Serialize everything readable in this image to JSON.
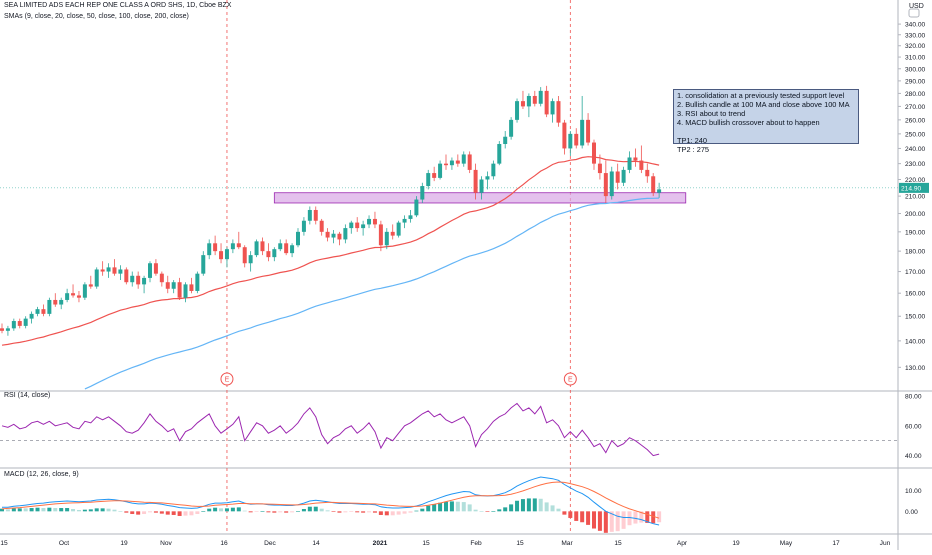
{
  "header": {
    "title": "SEA LIMITED ADS EACH REP ONE CLASS A ORD SHS, 1D, Cboe BZX",
    "smas": "SMAs (9, close, 20, close, 50, close, 100, close, 200, close)",
    "rsi": "RSI (14, close)",
    "macd": "MACD (12, 26, close, 9)",
    "currency": "USD"
  },
  "notes": {
    "lines": [
      "1. consolidation at a previously tested support level",
      "2. Bullish candle at 100 MA and close above 100 MA",
      "3. RSI about to trend",
      "4. MACD bullish crossover about to happen",
      "",
      "TP1:  240",
      "TP2 : 275"
    ]
  },
  "earnings_marker": "E",
  "colors": {
    "up": "#26a69a",
    "down": "#ef5350",
    "sma100": "#ef5350",
    "sma200": "#64b5f6",
    "rsi": "#9c27b0",
    "macd": "#2196f3",
    "signal": "#ff7043",
    "zone": "#d9a6e6"
  },
  "chart_data": [
    {
      "type": "candlestick",
      "y_axis": {
        "ticks": [
          130,
          140,
          150,
          160,
          170,
          180,
          190,
          200,
          210,
          220,
          230,
          240,
          250,
          260,
          270,
          280,
          290,
          300,
          310,
          320,
          330,
          340
        ],
        "ylim": [
          122,
          342
        ],
        "scale": "log",
        "current_price": "214.90"
      },
      "x_axis": {
        "ticks": [
          "15",
          "Oct",
          "19",
          "Nov",
          "16",
          "Dec",
          "14",
          "2021",
          "15",
          "Feb",
          "15",
          "Mar",
          "15",
          "Apr",
          "19",
          "May",
          "17",
          "Jun"
        ]
      },
      "support_zone": [
        206,
        212
      ],
      "candles": [
        [
          145,
          147,
          143,
          144
        ],
        [
          144,
          146,
          142,
          145
        ],
        [
          145,
          149,
          144,
          148
        ],
        [
          148,
          149,
          145,
          146
        ],
        [
          146,
          150,
          145,
          149
        ],
        [
          149,
          152,
          147,
          151
        ],
        [
          151,
          154,
          150,
          153
        ],
        [
          153,
          155,
          150,
          151
        ],
        [
          151,
          158,
          150,
          157
        ],
        [
          157,
          160,
          154,
          155
        ],
        [
          155,
          158,
          153,
          157
        ],
        [
          157,
          162,
          156,
          160
        ],
        [
          160,
          164,
          158,
          159
        ],
        [
          159,
          161,
          156,
          158
        ],
        [
          158,
          165,
          157,
          164
        ],
        [
          164,
          168,
          162,
          163
        ],
        [
          163,
          172,
          162,
          171
        ],
        [
          171,
          175,
          168,
          170
        ],
        [
          170,
          174,
          167,
          172
        ],
        [
          172,
          176,
          168,
          169
        ],
        [
          169,
          173,
          166,
          171
        ],
        [
          171,
          172,
          164,
          165
        ],
        [
          165,
          170,
          163,
          168
        ],
        [
          168,
          170,
          162,
          164
        ],
        [
          164,
          168,
          160,
          167
        ],
        [
          167,
          175,
          165,
          174
        ],
        [
          174,
          176,
          168,
          169
        ],
        [
          169,
          170,
          163,
          165
        ],
        [
          165,
          168,
          160,
          162
        ],
        [
          162,
          166,
          160,
          165
        ],
        [
          165,
          167,
          157,
          158
        ],
        [
          158,
          165,
          156,
          164
        ],
        [
          164,
          167,
          160,
          161
        ],
        [
          161,
          170,
          160,
          169
        ],
        [
          169,
          180,
          168,
          178
        ],
        [
          178,
          186,
          176,
          184
        ],
        [
          184,
          188,
          178,
          180
        ],
        [
          180,
          184,
          174,
          176
        ],
        [
          176,
          182,
          172,
          181
        ],
        [
          181,
          186,
          179,
          184
        ],
        [
          184,
          190,
          181,
          182
        ],
        [
          182,
          183,
          172,
          174
        ],
        [
          174,
          180,
          170,
          178
        ],
        [
          178,
          186,
          177,
          185
        ],
        [
          185,
          187,
          178,
          180
        ],
        [
          180,
          184,
          175,
          177
        ],
        [
          177,
          182,
          175,
          181
        ],
        [
          181,
          186,
          180,
          184
        ],
        [
          184,
          186,
          178,
          179
        ],
        [
          179,
          184,
          177,
          183
        ],
        [
          183,
          192,
          182,
          190
        ],
        [
          190,
          198,
          188,
          196
        ],
        [
          196,
          204,
          194,
          202
        ],
        [
          202,
          204,
          194,
          196
        ],
        [
          196,
          197,
          188,
          190
        ],
        [
          190,
          192,
          185,
          187
        ],
        [
          187,
          191,
          184,
          189
        ],
        [
          189,
          190,
          183,
          186
        ],
        [
          186,
          194,
          184,
          192
        ],
        [
          192,
          196,
          189,
          195
        ],
        [
          195,
          198,
          190,
          192
        ],
        [
          192,
          196,
          188,
          194
        ],
        [
          194,
          199,
          192,
          197
        ],
        [
          197,
          201,
          192,
          194
        ],
        [
          194,
          196,
          180,
          183
        ],
        [
          183,
          192,
          181,
          190
        ],
        [
          190,
          194,
          186,
          188
        ],
        [
          188,
          196,
          187,
          195
        ],
        [
          195,
          199,
          192,
          197
        ],
        [
          197,
          202,
          195,
          199
        ],
        [
          199,
          210,
          198,
          208
        ],
        [
          208,
          218,
          206,
          216
        ],
        [
          216,
          226,
          214,
          224
        ],
        [
          224,
          228,
          219,
          221
        ],
        [
          221,
          232,
          220,
          230
        ],
        [
          230,
          236,
          226,
          229
        ],
        [
          229,
          234,
          226,
          232
        ],
        [
          232,
          236,
          228,
          230
        ],
        [
          230,
          238,
          228,
          236
        ],
        [
          236,
          238,
          224,
          226
        ],
        [
          226,
          230,
          208,
          212
        ],
        [
          212,
          222,
          208,
          220
        ],
        [
          220,
          225,
          214,
          222
        ],
        [
          222,
          232,
          220,
          230
        ],
        [
          230,
          245,
          229,
          243
        ],
        [
          243,
          252,
          240,
          248
        ],
        [
          248,
          262,
          246,
          260
        ],
        [
          260,
          276,
          258,
          274
        ],
        [
          274,
          282,
          268,
          270
        ],
        [
          270,
          280,
          262,
          278
        ],
        [
          278,
          282,
          270,
          272
        ],
        [
          272,
          285,
          270,
          282
        ],
        [
          282,
          286,
          262,
          264
        ],
        [
          264,
          276,
          258,
          274
        ],
        [
          274,
          278,
          255,
          258
        ],
        [
          258,
          260,
          236,
          240
        ],
        [
          240,
          252,
          235,
          250
        ],
        [
          250,
          254,
          240,
          242
        ],
        [
          242,
          278,
          240,
          260
        ],
        [
          260,
          265,
          242,
          244
        ],
        [
          244,
          246,
          226,
          230
        ],
        [
          230,
          236,
          220,
          224
        ],
        [
          224,
          232,
          206,
          210
        ],
        [
          210,
          228,
          208,
          225
        ],
        [
          225,
          230,
          214,
          218
        ],
        [
          218,
          228,
          216,
          226
        ],
        [
          226,
          238,
          224,
          234
        ],
        [
          234,
          240,
          228,
          232
        ],
        [
          232,
          242,
          224,
          226
        ],
        [
          226,
          230,
          218,
          222
        ],
        [
          222,
          224,
          210,
          212
        ],
        [
          212,
          218,
          209,
          214
        ]
      ]
    },
    {
      "type": "line",
      "title": "RSI (14, close)",
      "y_axis": {
        "ticks": [
          40,
          60,
          80
        ],
        "ylim": [
          33,
          82
        ],
        "reference": 50
      },
      "values": [
        60,
        59,
        61,
        58,
        59,
        62,
        63,
        61,
        63,
        60,
        61,
        62,
        59,
        58,
        63,
        62,
        66,
        64,
        66,
        63,
        60,
        56,
        55,
        57,
        62,
        68,
        63,
        60,
        56,
        58,
        50,
        56,
        58,
        62,
        65,
        68,
        60,
        55,
        58,
        61,
        66,
        50,
        56,
        62,
        60,
        55,
        57,
        60,
        55,
        58,
        62,
        68,
        72,
        66,
        54,
        48,
        52,
        54,
        58,
        60,
        55,
        58,
        62,
        56,
        45,
        52,
        50,
        55,
        60,
        62,
        65,
        68,
        70,
        66,
        68,
        64,
        62,
        64,
        66,
        60,
        46,
        54,
        58,
        63,
        66,
        68,
        72,
        75,
        70,
        72,
        68,
        73,
        62,
        64,
        60,
        52,
        56,
        52,
        57,
        52,
        46,
        48,
        42,
        50,
        46,
        48,
        52,
        50,
        47,
        44,
        40,
        41
      ]
    },
    {
      "type": "line",
      "title": "MACD (12, 26, close, 9)",
      "y_axis": {
        "ticks": [
          0.0,
          10.0
        ],
        "ylim": [
          -10,
          20
        ]
      },
      "series": [
        {
          "name": "",
          "values": [
            2,
            2,
            2.5,
            2.7,
            3,
            3.4,
            3.8,
            4,
            4.4,
            4.6,
            4.8,
            5,
            4.8,
            4.6,
            4.8,
            5,
            5.5,
            5.7,
            5.8,
            5.6,
            5.2,
            4.6,
            4,
            3.6,
            3.6,
            4,
            3.8,
            3.4,
            2.8,
            2.4,
            1.8,
            1.6,
            1.4,
            1.6,
            2.4,
            3.4,
            4,
            4,
            4.2,
            4.6,
            5,
            4,
            3.4,
            3.6,
            3.6,
            3.2,
            3,
            3,
            2.8,
            2.8,
            3.2,
            4,
            5,
            5.4,
            5,
            4.6,
            4.2,
            3.8,
            3.8,
            3.8,
            3.6,
            3.4,
            3.4,
            3.2,
            2.2,
            1.8,
            1.6,
            1.6,
            1.8,
            2,
            2.6,
            3.4,
            4.6,
            5.6,
            6.6,
            7.6,
            8.4,
            9,
            9.6,
            9.4,
            8,
            7.6,
            7.4,
            7.6,
            8.2,
            9,
            10.4,
            12.2,
            13.6,
            14.8,
            15.8,
            16.6,
            16.2,
            15.8,
            15,
            13,
            11.4,
            9.8,
            8.6,
            6.8,
            4.4,
            2.2,
            0,
            -1.2,
            -2.4,
            -3,
            -3,
            -3.4,
            -4,
            -5,
            -6,
            -6.6
          ]
        },
        {
          "name": "",
          "values": [
            1.2,
            1.4,
            1.6,
            1.8,
            2.1,
            2.4,
            2.7,
            3,
            3.3,
            3.6,
            3.8,
            4,
            4.1,
            4.2,
            4.3,
            4.4,
            4.6,
            4.8,
            5,
            5.1,
            5.1,
            5,
            4.8,
            4.6,
            4.4,
            4.3,
            4.2,
            4.1,
            3.8,
            3.5,
            3.2,
            2.9,
            2.6,
            2.4,
            2.4,
            2.6,
            2.9,
            3.1,
            3.3,
            3.5,
            3.8,
            3.8,
            3.7,
            3.7,
            3.6,
            3.5,
            3.4,
            3.3,
            3.2,
            3.1,
            3.1,
            3.3,
            3.6,
            4,
            4.2,
            4.3,
            4.3,
            4.2,
            4.1,
            4,
            3.9,
            3.8,
            3.7,
            3.6,
            3.3,
            3,
            2.8,
            2.6,
            2.5,
            2.4,
            2.4,
            2.6,
            2.9,
            3.4,
            4,
            4.7,
            5.4,
            6.1,
            6.8,
            7.3,
            7.5,
            7.5,
            7.5,
            7.5,
            7.6,
            7.8,
            8.3,
            9,
            9.9,
            10.9,
            11.9,
            12.8,
            13.5,
            14,
            14.2,
            14,
            13.4,
            12.7,
            11.9,
            10.9,
            9.6,
            8.1,
            6.5,
            5,
            3.6,
            2.3,
            1.2,
            0.3,
            -0.6,
            -1.5,
            -2.4,
            -3.3
          ]
        }
      ]
    }
  ]
}
